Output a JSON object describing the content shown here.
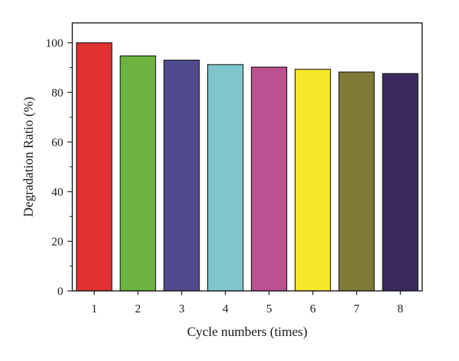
{
  "chart_data": {
    "type": "bar",
    "title": "",
    "xlabel": "Cycle numbers (times)",
    "ylabel": "Degradation Ratio (%)",
    "categories": [
      "1",
      "2",
      "3",
      "4",
      "5",
      "6",
      "7",
      "8"
    ],
    "values": [
      100,
      94.7,
      93.0,
      91.2,
      90.2,
      89.3,
      88.2,
      87.6
    ],
    "bar_colors": [
      "#e03030",
      "#6cb33f",
      "#4f4a8c",
      "#7fc6cc",
      "#bb5191",
      "#f5e82a",
      "#7f7a35",
      "#3a2a5c"
    ],
    "ylim": [
      0,
      108
    ],
    "y_ticks": [
      0,
      20,
      40,
      60,
      80,
      100
    ],
    "y_minor_tick_step": 10,
    "grid": false,
    "legend": "none",
    "frame": "box"
  }
}
